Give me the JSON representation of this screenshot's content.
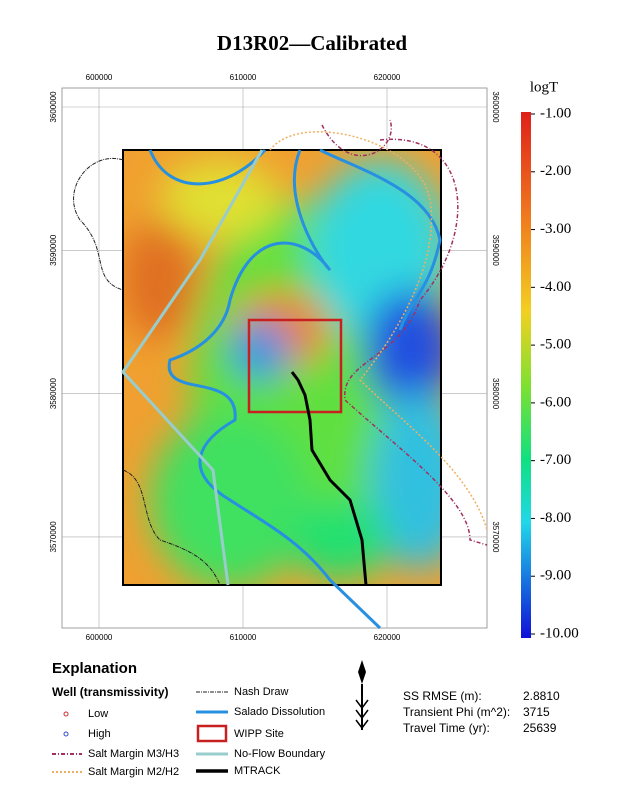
{
  "title": "D13R02—Calibrated",
  "map": {
    "x_ticks": [
      "600000",
      "610000",
      "620000"
    ],
    "y_ticks": [
      "3600000",
      "3590000",
      "3580000",
      "3570000"
    ]
  },
  "colorbar": {
    "title": "logT",
    "labels": [
      "-1.00",
      "-2.00",
      "-3.00",
      "-4.00",
      "-5.00",
      "-6.00",
      "-7.00",
      "-8.00",
      "-9.00",
      "-10.00"
    ]
  },
  "legend": {
    "heading": "Explanation",
    "well_heading": "Well (transmissivity)",
    "items": [
      "Low",
      "High",
      "Salt Margin M3/H3",
      "Salt Margin M2/H2",
      "Nash Draw",
      "Salado Dissolution",
      "WIPP Site",
      "No-Flow Boundary",
      "MTRACK"
    ]
  },
  "stats": [
    {
      "label": "SS RMSE (m):",
      "value": "2.8810"
    },
    {
      "label": "Transient Phi (m^2):",
      "value": "3715"
    },
    {
      "label": "Travel Time (yr):",
      "value": "25639"
    }
  ]
}
